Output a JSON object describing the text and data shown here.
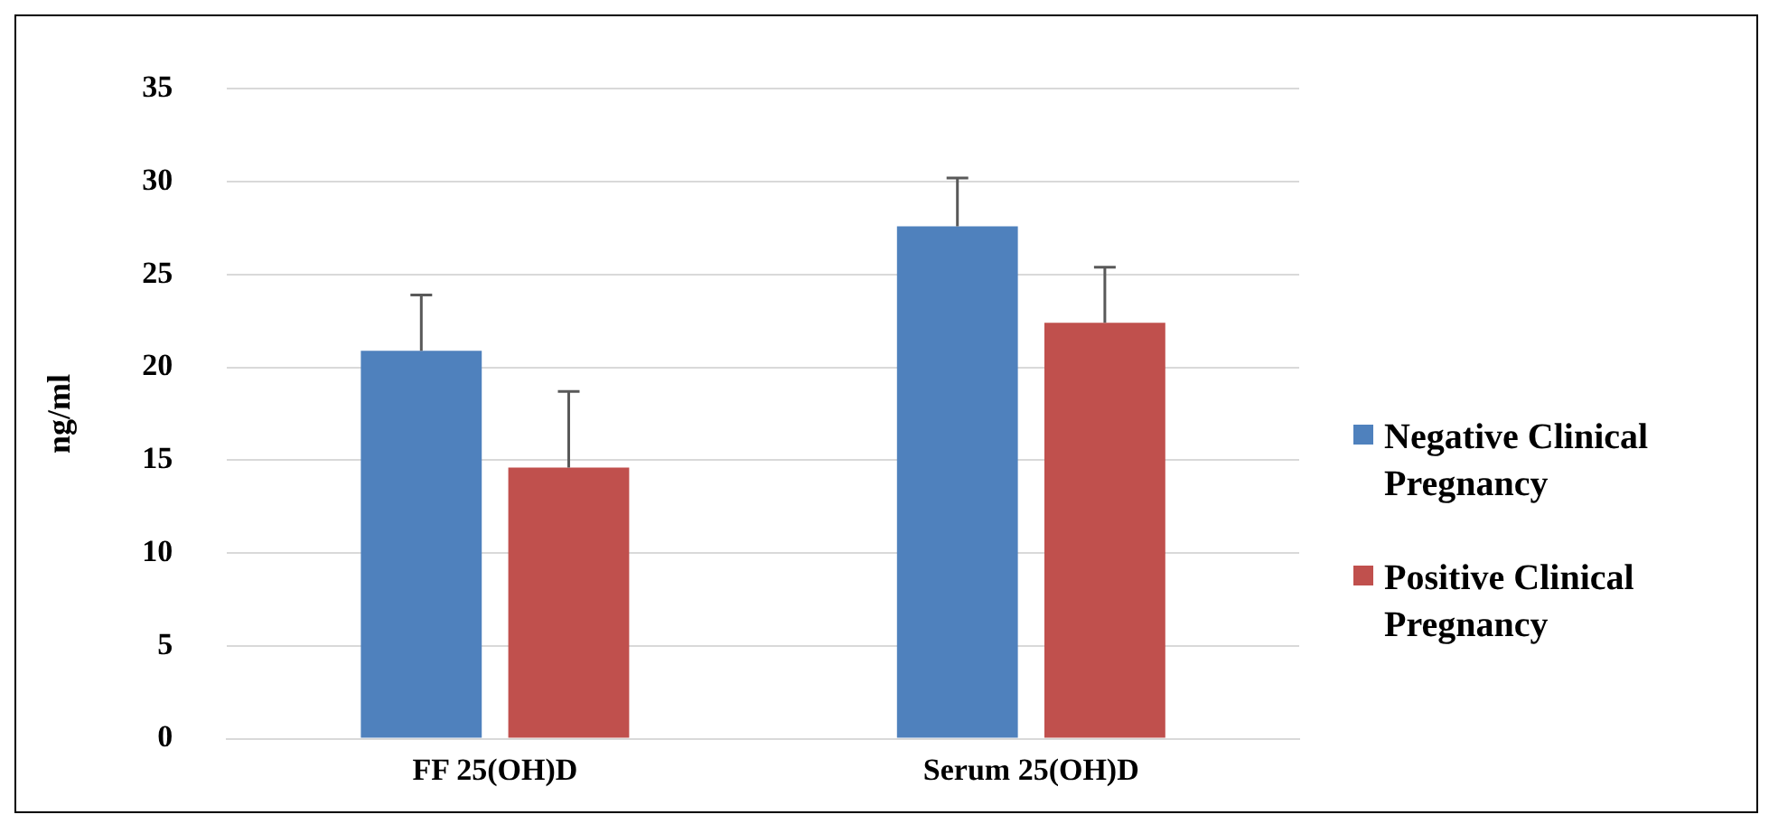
{
  "chart_data": {
    "type": "bar",
    "ylabel": "ng/ml",
    "categories": [
      "FF 25(OH)D",
      "Serum 25(OH)D"
    ],
    "series": [
      {
        "name": "Negative Clinical Pregnancy",
        "color": "#4f81bd",
        "values": [
          20.9,
          27.6
        ],
        "errors": [
          [
            20.9,
            23.9
          ],
          [
            27.6,
            30.2
          ]
        ]
      },
      {
        "name": "Positive Clinical Pregnancy",
        "color": "#c0504d",
        "values": [
          14.6,
          22.4
        ],
        "errors": [
          [
            14.6,
            18.7
          ],
          [
            22.4,
            25.4
          ]
        ]
      }
    ],
    "ylim": [
      0,
      35
    ],
    "yticks": [
      0,
      5,
      10,
      15,
      20,
      25,
      30,
      35
    ],
    "grid": "y",
    "legend": "right"
  }
}
